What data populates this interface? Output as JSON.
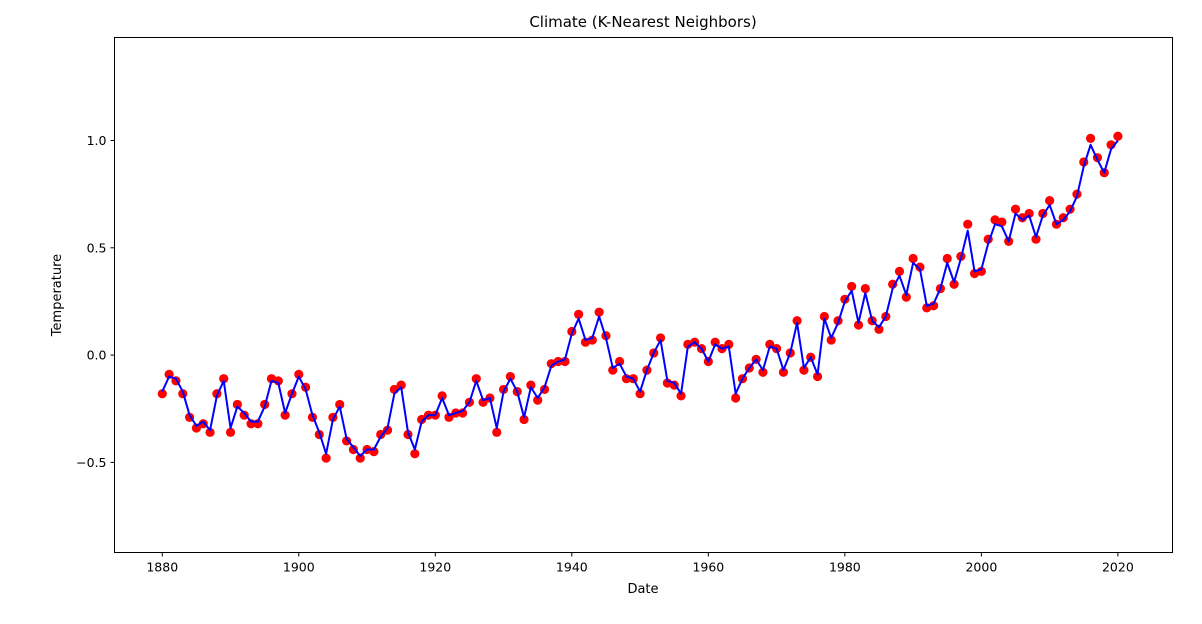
{
  "chart_data": {
    "type": "scatter",
    "title": "Climate (K-Nearest Neighbors)",
    "xlabel": "Date",
    "ylabel": "Temperature",
    "xlim": [
      1873,
      2028
    ],
    "ylim": [
      -0.92,
      1.48
    ],
    "xticks": [
      {
        "value": 1880,
        "label": "1880"
      },
      {
        "value": 1900,
        "label": "1900"
      },
      {
        "value": 1920,
        "label": "1920"
      },
      {
        "value": 1940,
        "label": "1940"
      },
      {
        "value": 1960,
        "label": "1960"
      },
      {
        "value": 1980,
        "label": "1980"
      },
      {
        "value": 2000,
        "label": "2000"
      },
      {
        "value": 2020,
        "label": "2020"
      }
    ],
    "yticks": [
      {
        "value": -0.5,
        "label": "−0.5"
      },
      {
        "value": 0.0,
        "label": "0.0"
      },
      {
        "value": 0.5,
        "label": "0.5"
      },
      {
        "value": 1.0,
        "label": "1.0"
      }
    ],
    "grid": false,
    "legend": "none",
    "colors": {
      "scatter": "#ff0000",
      "line": "#0000ff"
    },
    "series": [
      {
        "type": "scatter",
        "x": [
          1880,
          1881,
          1882,
          1883,
          1884,
          1885,
          1886,
          1887,
          1888,
          1889,
          1890,
          1891,
          1892,
          1893,
          1894,
          1895,
          1896,
          1897,
          1898,
          1899,
          1900,
          1901,
          1902,
          1903,
          1904,
          1905,
          1906,
          1907,
          1908,
          1909,
          1910,
          1911,
          1912,
          1913,
          1914,
          1915,
          1916,
          1917,
          1918,
          1919,
          1920,
          1921,
          1922,
          1923,
          1924,
          1925,
          1926,
          1927,
          1928,
          1929,
          1930,
          1931,
          1932,
          1933,
          1934,
          1935,
          1936,
          1937,
          1938,
          1939,
          1940,
          1941,
          1942,
          1943,
          1944,
          1945,
          1946,
          1947,
          1948,
          1949,
          1950,
          1951,
          1952,
          1953,
          1954,
          1955,
          1956,
          1957,
          1958,
          1959,
          1960,
          1961,
          1962,
          1963,
          1964,
          1965,
          1966,
          1967,
          1968,
          1969,
          1970,
          1971,
          1972,
          1973,
          1974,
          1975,
          1976,
          1977,
          1978,
          1979,
          1980,
          1981,
          1982,
          1983,
          1984,
          1985,
          1986,
          1987,
          1988,
          1989,
          1990,
          1991,
          1992,
          1993,
          1994,
          1995,
          1996,
          1997,
          1998,
          1999,
          2000,
          2001,
          2002,
          2003,
          2004,
          2005,
          2006,
          2007,
          2008,
          2009,
          2010,
          2011,
          2012,
          2013,
          2014,
          2015,
          2016,
          2017,
          2018,
          2019,
          2020
        ],
        "y": [
          -0.18,
          -0.09,
          -0.12,
          -0.18,
          -0.29,
          -0.34,
          -0.32,
          -0.36,
          -0.18,
          -0.11,
          -0.36,
          -0.23,
          -0.28,
          -0.32,
          -0.32,
          -0.23,
          -0.11,
          -0.12,
          -0.28,
          -0.18,
          -0.09,
          -0.15,
          -0.29,
          -0.37,
          -0.48,
          -0.29,
          -0.23,
          -0.4,
          -0.44,
          -0.48,
          -0.44,
          -0.45,
          -0.37,
          -0.35,
          -0.16,
          -0.14,
          -0.37,
          -0.46,
          -0.3,
          -0.28,
          -0.28,
          -0.19,
          -0.29,
          -0.27,
          -0.27,
          -0.22,
          -0.11,
          -0.22,
          -0.2,
          -0.36,
          -0.16,
          -0.1,
          -0.17,
          -0.3,
          -0.14,
          -0.21,
          -0.16,
          -0.04,
          -0.03,
          -0.03,
          0.11,
          0.19,
          0.06,
          0.07,
          0.2,
          0.09,
          -0.07,
          -0.03,
          -0.11,
          -0.11,
          -0.18,
          -0.07,
          0.01,
          0.08,
          -0.13,
          -0.14,
          -0.19,
          0.05,
          0.06,
          0.03,
          -0.03,
          0.06,
          0.03,
          0.05,
          -0.2,
          -0.11,
          -0.06,
          -0.02,
          -0.08,
          0.05,
          0.03,
          -0.08,
          0.01,
          0.16,
          -0.07,
          -0.01,
          -0.1,
          0.18,
          0.07,
          0.16,
          0.26,
          0.32,
          0.14,
          0.31,
          0.16,
          0.12,
          0.18,
          0.33,
          0.39,
          0.27,
          0.45,
          0.41,
          0.22,
          0.23,
          0.31,
          0.45,
          0.33,
          0.46,
          0.61,
          0.38,
          0.39,
          0.54,
          0.63,
          0.62,
          0.53,
          0.68,
          0.64,
          0.66,
          0.54,
          0.66,
          0.72,
          0.61,
          0.64,
          0.68,
          0.75,
          0.9,
          1.01,
          0.92,
          0.85,
          0.98,
          1.02
        ]
      },
      {
        "type": "line",
        "x": [
          1880,
          1881,
          1882,
          1883,
          1884,
          1885,
          1886,
          1887,
          1888,
          1889,
          1890,
          1891,
          1892,
          1893,
          1894,
          1895,
          1896,
          1897,
          1898,
          1899,
          1900,
          1901,
          1902,
          1903,
          1904,
          1905,
          1906,
          1907,
          1908,
          1909,
          1910,
          1911,
          1912,
          1913,
          1914,
          1915,
          1916,
          1917,
          1918,
          1919,
          1920,
          1921,
          1922,
          1923,
          1924,
          1925,
          1926,
          1927,
          1928,
          1929,
          1930,
          1931,
          1932,
          1933,
          1934,
          1935,
          1936,
          1937,
          1938,
          1939,
          1940,
          1941,
          1942,
          1943,
          1944,
          1945,
          1946,
          1947,
          1948,
          1949,
          1950,
          1951,
          1952,
          1953,
          1954,
          1955,
          1956,
          1957,
          1958,
          1959,
          1960,
          1961,
          1962,
          1963,
          1964,
          1965,
          1966,
          1967,
          1968,
          1969,
          1970,
          1971,
          1972,
          1973,
          1974,
          1975,
          1976,
          1977,
          1978,
          1979,
          1980,
          1981,
          1982,
          1983,
          1984,
          1985,
          1986,
          1987,
          1988,
          1989,
          1990,
          1991,
          1992,
          1993,
          1994,
          1995,
          1996,
          1997,
          1998,
          1999,
          2000,
          2001,
          2002,
          2003,
          2004,
          2005,
          2006,
          2007,
          2008,
          2009,
          2010,
          2011,
          2012,
          2013,
          2014,
          2015,
          2016,
          2017,
          2018,
          2019,
          2020
        ],
        "y": [
          -0.17,
          -0.1,
          -0.11,
          -0.17,
          -0.28,
          -0.33,
          -0.31,
          -0.35,
          -0.19,
          -0.12,
          -0.34,
          -0.24,
          -0.27,
          -0.31,
          -0.31,
          -0.24,
          -0.12,
          -0.13,
          -0.27,
          -0.18,
          -0.1,
          -0.16,
          -0.28,
          -0.36,
          -0.46,
          -0.3,
          -0.24,
          -0.39,
          -0.43,
          -0.47,
          -0.44,
          -0.44,
          -0.38,
          -0.34,
          -0.18,
          -0.15,
          -0.36,
          -0.44,
          -0.31,
          -0.28,
          -0.28,
          -0.2,
          -0.28,
          -0.27,
          -0.26,
          -0.22,
          -0.12,
          -0.21,
          -0.2,
          -0.34,
          -0.17,
          -0.11,
          -0.17,
          -0.29,
          -0.15,
          -0.2,
          -0.15,
          -0.05,
          -0.03,
          -0.02,
          0.1,
          0.17,
          0.07,
          0.08,
          0.18,
          0.08,
          -0.06,
          -0.04,
          -0.1,
          -0.11,
          -0.17,
          -0.07,
          0.01,
          0.07,
          -0.12,
          -0.13,
          -0.18,
          0.04,
          0.06,
          0.03,
          -0.03,
          0.05,
          0.03,
          0.04,
          -0.18,
          -0.11,
          -0.06,
          -0.02,
          -0.07,
          0.04,
          0.03,
          -0.07,
          0.01,
          0.15,
          -0.06,
          -0.01,
          -0.09,
          0.17,
          0.08,
          0.15,
          0.25,
          0.3,
          0.15,
          0.29,
          0.16,
          0.13,
          0.18,
          0.31,
          0.37,
          0.28,
          0.43,
          0.4,
          0.23,
          0.24,
          0.31,
          0.43,
          0.34,
          0.45,
          0.58,
          0.39,
          0.4,
          0.52,
          0.61,
          0.6,
          0.53,
          0.66,
          0.63,
          0.65,
          0.55,
          0.65,
          0.7,
          0.61,
          0.63,
          0.67,
          0.74,
          0.88,
          0.98,
          0.91,
          0.85,
          0.96,
          1.0
        ]
      }
    ]
  }
}
